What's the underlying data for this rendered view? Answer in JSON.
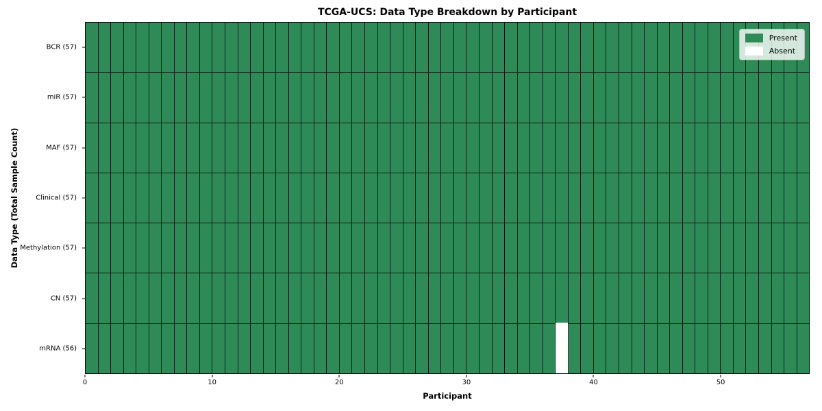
{
  "chart_data": {
    "type": "heatmap",
    "title": "TCGA-UCS: Data Type Breakdown by Participant",
    "xlabel": "Participant",
    "ylabel": "Data Type (Total Sample Count)",
    "n_participants": 57,
    "xlim": [
      0,
      57
    ],
    "x_ticks": [
      0,
      10,
      20,
      30,
      40,
      50
    ],
    "legend_position": "upper right",
    "rows": [
      {
        "data_type": "BCR",
        "label": "BCR (57)",
        "total_samples": 57,
        "absent_participants": []
      },
      {
        "data_type": "miR",
        "label": "miR (57)",
        "total_samples": 57,
        "absent_participants": []
      },
      {
        "data_type": "MAF",
        "label": "MAF (57)",
        "total_samples": 57,
        "absent_participants": []
      },
      {
        "data_type": "Clinical",
        "label": "Clinical (57)",
        "total_samples": 57,
        "absent_participants": []
      },
      {
        "data_type": "Methylation",
        "label": "Methylation (57)",
        "total_samples": 57,
        "absent_participants": []
      },
      {
        "data_type": "CN",
        "label": "CN (57)",
        "total_samples": 57,
        "absent_participants": []
      },
      {
        "data_type": "mRNA",
        "label": "mRNA (56)",
        "total_samples": 56,
        "absent_participants": [
          37
        ]
      }
    ],
    "legend": {
      "entries": [
        {
          "label": "Present",
          "color": "#2e8b57"
        },
        {
          "label": "Absent",
          "color": "#ffffff"
        }
      ]
    },
    "colors": {
      "present": "#2e8b57",
      "absent": "#ffffff",
      "cell_edge": "rgba(0,0,0,0.78)",
      "spine": "#000000",
      "background": "#ffffff"
    }
  }
}
